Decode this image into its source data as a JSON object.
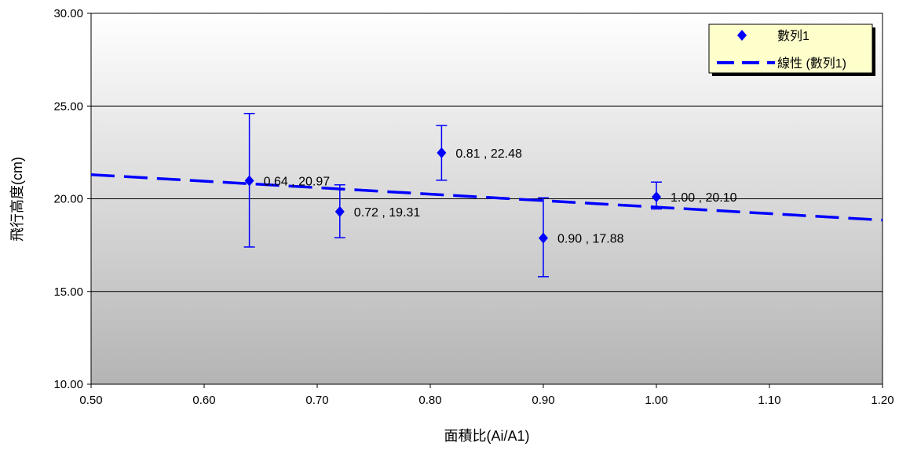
{
  "chart_data": {
    "type": "scatter",
    "title": "",
    "xlabel": "面積比(Ai/A1)",
    "ylabel": "飛行高度(cm)",
    "xlim": [
      0.5,
      1.2
    ],
    "ylim": [
      10.0,
      30.0
    ],
    "x_ticks": [
      "0.50",
      "0.60",
      "0.70",
      "0.80",
      "0.90",
      "1.00",
      "1.10",
      "1.20"
    ],
    "y_ticks": [
      "10.00",
      "15.00",
      "20.00",
      "25.00",
      "30.00"
    ],
    "grid": "horizontal",
    "legend_position": "top-right",
    "series": [
      {
        "name": "數列1",
        "marker": "diamond",
        "color": "#0000ff",
        "points": [
          {
            "x": 0.64,
            "y": 20.97,
            "err_low": 17.4,
            "err_high": 24.6,
            "label": "0.64 , 20.97"
          },
          {
            "x": 0.72,
            "y": 19.31,
            "err_low": 17.9,
            "err_high": 20.75,
            "label": "0.72 , 19.31"
          },
          {
            "x": 0.81,
            "y": 22.48,
            "err_low": 21.0,
            "err_high": 23.95,
            "label": "0.81 , 22.48"
          },
          {
            "x": 0.9,
            "y": 17.88,
            "err_low": 15.8,
            "err_high": 20.05,
            "label": "0.90 , 17.88"
          },
          {
            "x": 1.0,
            "y": 20.1,
            "err_low": 19.45,
            "err_high": 20.9,
            "label": "1.00 , 20.10"
          }
        ]
      }
    ],
    "trendline": {
      "name": "線性 (數列1)",
      "type": "linear",
      "color": "#0000ff",
      "x": [
        0.5,
        1.2
      ],
      "y": [
        21.3,
        18.85
      ]
    }
  }
}
